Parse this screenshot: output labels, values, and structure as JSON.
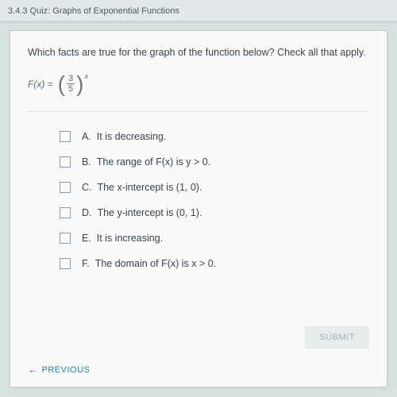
{
  "colors": {
    "bg": "#dbe6e5",
    "card_bg": "#fefefe",
    "card_border": "#c9d0d2",
    "text_primary": "#3a4650",
    "text_muted": "#5a6a76",
    "checkbox_border": "#8a9aa4",
    "divider": "#dfe5e7",
    "submit_bg": "#eef1f2",
    "submit_text": "#a8b2b8",
    "link": "#1a8ab0"
  },
  "topbar": {
    "title": "3.4.3 Quiz: Graphs of Exponential Functions"
  },
  "question": {
    "text": "Which facts are true for the graph of the function below? Check all that apply.",
    "formula": {
      "func_label": "F(x) =",
      "numerator": "3",
      "denominator": "5",
      "exponent": "x"
    }
  },
  "options": [
    {
      "letter": "A.",
      "text": "It is decreasing.",
      "checked": false
    },
    {
      "letter": "B.",
      "text": "The range of F(x) is y > 0.",
      "checked": false
    },
    {
      "letter": "C.",
      "text": "The x-intercept is (1, 0).",
      "checked": false
    },
    {
      "letter": "D.",
      "text": "The y-intercept is (0, 1).",
      "checked": false
    },
    {
      "letter": "E.",
      "text": "It is increasing.",
      "checked": false
    },
    {
      "letter": "F.",
      "text": "The domain of F(x) is x > 0.",
      "checked": false
    }
  ],
  "buttons": {
    "submit": "SUBMIT",
    "previous": "PREVIOUS",
    "prev_arrow": "←"
  }
}
